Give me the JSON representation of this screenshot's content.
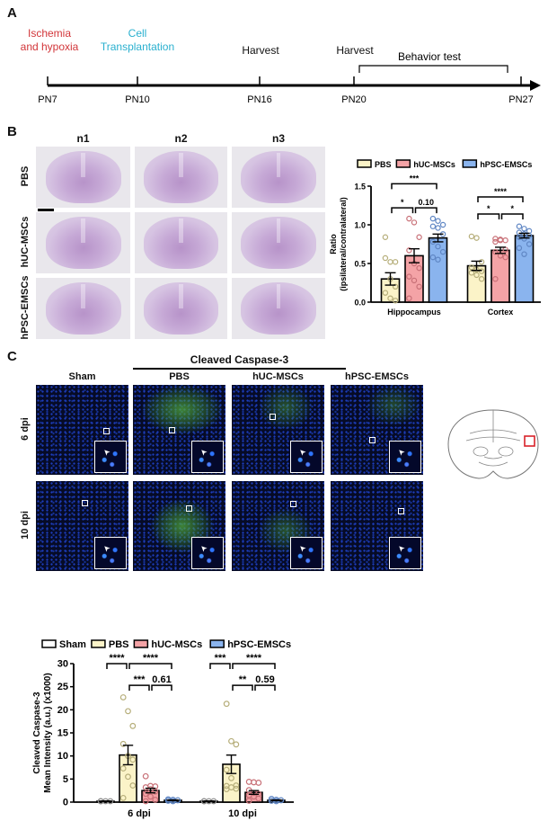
{
  "panels": {
    "a": "A",
    "b": "B",
    "c": "C"
  },
  "timeline": {
    "events": [
      {
        "tick": "PN7",
        "label_lines": [
          "Ischemia",
          "and hypoxia"
        ],
        "color": "#d2363a"
      },
      {
        "tick": "PN10",
        "label_lines": [
          "Cell",
          "Transplantation"
        ],
        "color": "#2ab0cf"
      },
      {
        "tick": "PN16",
        "label_lines": [
          "Harvest"
        ],
        "color": "#111111"
      },
      {
        "tick": "PN20",
        "label_lines": [
          "Harvest"
        ],
        "color": "#111111"
      },
      {
        "tick": "PN27",
        "label_lines": [],
        "color": "#111111"
      }
    ],
    "range_label": "Behavior test"
  },
  "nissl": {
    "columns": [
      "n1",
      "n2",
      "n3"
    ],
    "rows": [
      "PBS",
      "hUC-MSCs",
      "hPSC-EMSCs"
    ]
  },
  "if_panel": {
    "title": "Cleaved Caspase-3",
    "columns": [
      "Sham",
      "PBS",
      "hUC-MSCs",
      "hPSC-EMSCs"
    ],
    "rows": [
      "6 dpi",
      "10 dpi"
    ]
  },
  "chart_data": [
    {
      "type": "bar",
      "ylabel": "Ratio\n(ipsilateral/contralateral)",
      "ylabel_lines": [
        "Ratio",
        "(ipsilateral/contralateral)"
      ],
      "ylim": [
        0,
        1.5
      ],
      "yticks": [
        "0.0",
        "0.5",
        "1.0",
        "1.5"
      ],
      "categories": [
        "Hippocampus",
        "Cortex"
      ],
      "legend_position": "top",
      "series": [
        {
          "name": "PBS",
          "color": "#fbf3c8",
          "values": [
            0.3,
            0.47
          ],
          "sem": [
            0.08,
            0.06
          ],
          "points": [
            [
              0.84,
              0.52,
              0.52,
              0.57,
              0.3,
              0.2,
              0.12,
              0.05,
              0.02
            ],
            [
              0.85,
              0.83,
              0.52,
              0.45,
              0.42,
              0.4,
              0.38,
              0.35,
              0.3
            ]
          ]
        },
        {
          "name": "hUC-MSCs",
          "color": "#f4a3a6",
          "values": [
            0.6,
            0.67
          ],
          "sem": [
            0.09,
            0.04
          ],
          "points": [
            [
              1.08,
              1.03,
              0.84,
              0.67,
              0.5,
              0.44,
              0.33,
              0.28,
              0.2,
              0.05
            ],
            [
              0.82,
              0.81,
              0.8,
              0.78,
              0.8,
              0.68,
              0.65,
              0.6,
              0.58,
              0.3
            ]
          ]
        },
        {
          "name": "hPSC-EMSCs",
          "color": "#8ab4ee",
          "values": [
            0.83,
            0.86
          ],
          "sem": [
            0.05,
            0.03
          ],
          "points": [
            [
              1.08,
              1.05,
              1.0,
              0.98,
              0.96,
              0.88,
              0.78,
              0.72,
              0.65,
              0.58,
              0.55
            ],
            [
              0.98,
              0.95,
              0.92,
              0.9,
              0.88,
              0.86,
              0.84,
              0.82,
              0.75,
              0.7,
              0.62
            ]
          ]
        }
      ],
      "significance": [
        {
          "category": 0,
          "from": 0,
          "to": 2,
          "y": 1.53,
          "label": "***"
        },
        {
          "category": 0,
          "from": 0,
          "to": 1,
          "y": 1.22,
          "label": "*"
        },
        {
          "category": 0,
          "from": 1,
          "to": 2,
          "y": 1.22,
          "label": "0.10"
        },
        {
          "category": 1,
          "from": 0,
          "to": 2,
          "y": 1.36,
          "label": "****"
        },
        {
          "category": 1,
          "from": 0,
          "to": 1,
          "y": 1.14,
          "label": "*"
        },
        {
          "category": 1,
          "from": 1,
          "to": 2,
          "y": 1.14,
          "label": "*"
        }
      ]
    },
    {
      "type": "bar",
      "ylabel_lines": [
        "Cleaved Caspase-3",
        "Mean Intensity (a.u.) (x1000)"
      ],
      "ylim": [
        0,
        30
      ],
      "yticks": [
        "0",
        "5",
        "10",
        "15",
        "20",
        "25",
        "30"
      ],
      "categories": [
        "6 dpi",
        "10 dpi"
      ],
      "legend_position": "top",
      "series": [
        {
          "name": "Sham",
          "color": "#ffffff",
          "values": [
            0.2,
            0.2
          ],
          "sem": [
            0.05,
            0.05
          ],
          "points": [
            [
              0.2,
              0.2,
              0.2,
              0.2
            ],
            [
              0.2,
              0.2,
              0.2,
              0.2
            ]
          ]
        },
        {
          "name": "PBS",
          "color": "#fbf3c8",
          "values": [
            10.2,
            8.2
          ],
          "sem": [
            2.1,
            2.0
          ],
          "points": [
            [
              22.7,
              19.7,
              16.5,
              12.6,
              10.0,
              9.2,
              7.3,
              5.5,
              3.6,
              0.9
            ],
            [
              21.3,
              13.2,
              12.5,
              7.0,
              5.2,
              3.6,
              3.5,
              3.2,
              2.9,
              2.8
            ]
          ]
        },
        {
          "name": "hUC-MSCs",
          "color": "#f4a3a6",
          "values": [
            2.5,
            2.1
          ],
          "sem": [
            0.5,
            0.4
          ],
          "points": [
            [
              5.6,
              3.5,
              3.4,
              3.2,
              2.8,
              2.3,
              1.8,
              1.2,
              0.5,
              0.2
            ],
            [
              4.4,
              4.3,
              4.2,
              2.6,
              2.0,
              1.8,
              1.5,
              1.2,
              0.8,
              0.3
            ]
          ]
        },
        {
          "name": "hPSC-EMSCs",
          "color": "#8ab4ee",
          "values": [
            0.4,
            0.4
          ],
          "sem": [
            0.08,
            0.08
          ],
          "points": [
            [
              0.6,
              0.5,
              0.4,
              0.3,
              0.2
            ],
            [
              0.7,
              0.5,
              0.4,
              0.3,
              0.2
            ]
          ]
        }
      ],
      "significance": [
        {
          "category": 0,
          "from": 0,
          "to": 1,
          "y": 30,
          "label": "****"
        },
        {
          "category": 0,
          "from": 1,
          "to": 3,
          "y": 30,
          "label": "****"
        },
        {
          "category": 0,
          "from": 1,
          "to": 2,
          "y": 25.3,
          "label": "***"
        },
        {
          "category": 0,
          "from": 2,
          "to": 3,
          "y": 25.3,
          "label": "0.61"
        },
        {
          "category": 1,
          "from": 0,
          "to": 1,
          "y": 30,
          "label": "***"
        },
        {
          "category": 1,
          "from": 1,
          "to": 3,
          "y": 30,
          "label": "****"
        },
        {
          "category": 1,
          "from": 1,
          "to": 2,
          "y": 25.3,
          "label": "**"
        },
        {
          "category": 1,
          "from": 2,
          "to": 3,
          "y": 25.3,
          "label": "0.59"
        }
      ]
    }
  ]
}
